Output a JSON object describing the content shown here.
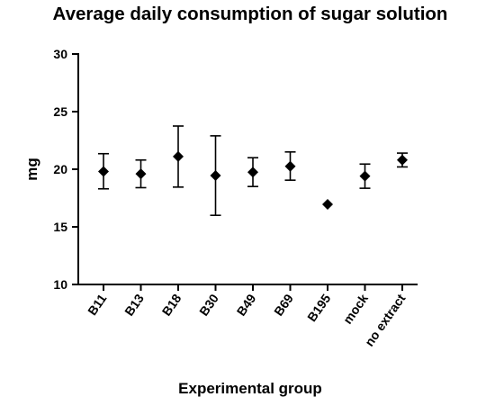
{
  "chart_data": {
    "type": "scatter",
    "title": "Average daily consumption of sugar solution",
    "xlabel": "Experimental group",
    "ylabel": "mg",
    "ylim": [
      10,
      30
    ],
    "yticks": [
      10,
      15,
      20,
      25,
      30
    ],
    "grid": false,
    "categories": [
      "B11",
      "B13",
      "B18",
      "B30",
      "B49",
      "B69",
      "B195",
      "mock",
      "no extract"
    ],
    "values": [
      19.8,
      19.6,
      21.1,
      19.45,
      19.75,
      20.25,
      16.95,
      19.4,
      20.8
    ],
    "error_low": [
      18.3,
      18.4,
      18.45,
      16.0,
      18.5,
      19.05,
      16.95,
      18.35,
      20.2
    ],
    "error_high": [
      21.35,
      20.8,
      23.75,
      22.9,
      21.0,
      21.5,
      16.95,
      20.45,
      21.4
    ],
    "marker": "diamond",
    "color": "#000000"
  }
}
